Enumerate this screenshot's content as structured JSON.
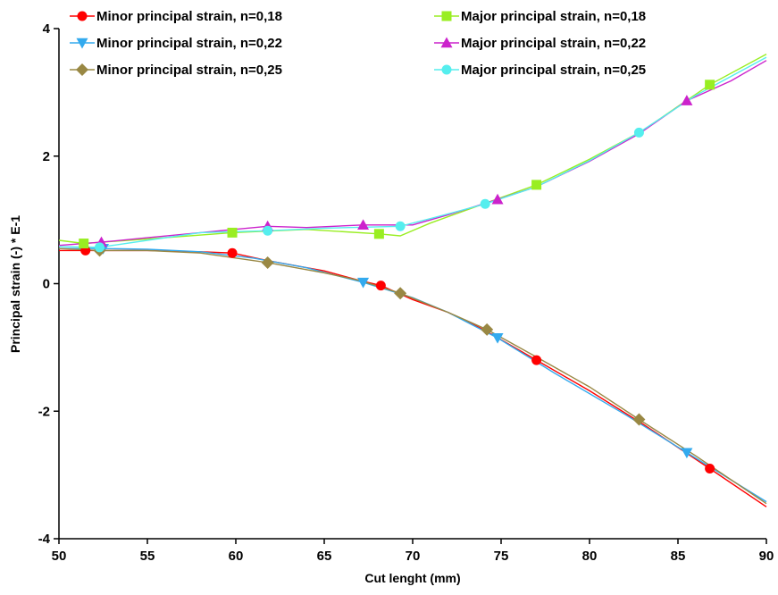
{
  "chart_data": {
    "type": "line",
    "title": "",
    "xlabel": "Cut lenght (mm)",
    "ylabel": "Principal strain (-) * E-1",
    "xlim": [
      50,
      90
    ],
    "ylim": [
      -4,
      4
    ],
    "x_ticks": [
      50,
      55,
      60,
      65,
      70,
      75,
      80,
      85,
      90
    ],
    "y_ticks": [
      -4,
      -2,
      0,
      2,
      4
    ],
    "x_tick_labels": [
      "50",
      "55",
      "60",
      "65",
      "70",
      "75",
      "80",
      "85",
      "90"
    ],
    "y_tick_labels": [
      "-4",
      "-2",
      "0",
      "2",
      "4"
    ],
    "grid": false,
    "legend_position": "top",
    "series": [
      {
        "name": "Minor principal strain, n=0,18",
        "color": "#ff0000",
        "marker": "circle",
        "x": [
          50,
          51.5,
          55,
          58,
          59.8,
          62,
          65,
          67,
          68.2,
          70,
          72,
          74,
          77,
          80,
          83,
          86.8,
          90
        ],
        "y": [
          0.52,
          0.52,
          0.52,
          0.5,
          0.48,
          0.35,
          0.2,
          0.05,
          -0.03,
          -0.25,
          -0.45,
          -0.72,
          -1.2,
          -1.68,
          -2.2,
          -2.9,
          -3.5
        ],
        "marker_x": [
          51.5,
          59.8,
          68.2,
          77,
          86.8
        ],
        "marker_y": [
          0.52,
          0.48,
          -0.03,
          -1.2,
          -2.9
        ]
      },
      {
        "name": "Minor principal strain, n=0,22",
        "color": "#33aaee",
        "marker": "triangle-down",
        "x": [
          50,
          52.5,
          55,
          58,
          61,
          64,
          67.2,
          70,
          72,
          74.8,
          78,
          82,
          85.5,
          90
        ],
        "y": [
          0.55,
          0.55,
          0.54,
          0.5,
          0.4,
          0.25,
          0.02,
          -0.22,
          -0.45,
          -0.85,
          -1.4,
          -2.05,
          -2.65,
          -3.42
        ],
        "marker_x": [
          52.5,
          67.2,
          74.8,
          85.5
        ],
        "marker_y": [
          0.55,
          0.02,
          -0.85,
          -2.65
        ]
      },
      {
        "name": "Minor principal strain, n=0,25",
        "color": "#998844",
        "marker": "diamond",
        "x": [
          50,
          52.3,
          55,
          58,
          61.8,
          65,
          67,
          69.3,
          72,
          74.2,
          77,
          80,
          82.8,
          86,
          90
        ],
        "y": [
          0.55,
          0.52,
          0.52,
          0.48,
          0.33,
          0.17,
          0.05,
          -0.15,
          -0.45,
          -0.72,
          -1.15,
          -1.62,
          -2.13,
          -2.7,
          -3.45
        ],
        "marker_x": [
          52.3,
          61.8,
          69.3,
          74.2,
          82.8
        ],
        "marker_y": [
          0.52,
          0.33,
          -0.15,
          -0.72,
          -2.13
        ]
      },
      {
        "name": "Major principal strain, n=0,18",
        "color": "#99ee22",
        "marker": "square",
        "x": [
          50,
          51.4,
          55,
          59.8,
          64,
          68.1,
          69.3,
          71,
          74,
          77,
          80,
          83,
          86.8,
          90
        ],
        "y": [
          0.68,
          0.63,
          0.7,
          0.8,
          0.85,
          0.78,
          0.75,
          0.95,
          1.25,
          1.55,
          1.95,
          2.4,
          3.12,
          3.6
        ],
        "marker_x": [
          51.4,
          59.8,
          68.1,
          77,
          86.8
        ],
        "marker_y": [
          0.63,
          0.8,
          0.78,
          1.55,
          3.12
        ]
      },
      {
        "name": "Major principal strain, n=0,22",
        "color": "#cc22cc",
        "marker": "triangle-up",
        "x": [
          50,
          52.4,
          55,
          58,
          61.8,
          64,
          67.2,
          70,
          72,
          74.8,
          77,
          80,
          82.8,
          85.5,
          88,
          90
        ],
        "y": [
          0.6,
          0.65,
          0.72,
          0.8,
          0.9,
          0.88,
          0.92,
          0.92,
          1.08,
          1.32,
          1.52,
          1.92,
          2.35,
          2.87,
          3.18,
          3.5
        ],
        "marker_x": [
          52.4,
          61.8,
          67.2,
          74.8,
          85.5
        ],
        "marker_y": [
          0.65,
          0.9,
          0.92,
          1.32,
          2.87
        ]
      },
      {
        "name": "Major principal strain, n=0,25",
        "color": "#55eeee",
        "marker": "circle",
        "x": [
          50,
          52.3,
          55,
          58,
          61.8,
          65,
          69.3,
          71,
          74.1,
          77,
          80,
          82.8,
          86,
          90
        ],
        "y": [
          0.58,
          0.57,
          0.68,
          0.8,
          0.83,
          0.87,
          0.9,
          1.02,
          1.25,
          1.52,
          1.93,
          2.37,
          2.95,
          3.55
        ],
        "marker_x": [
          52.3,
          61.8,
          69.3,
          74.1,
          82.8
        ],
        "marker_y": [
          0.57,
          0.83,
          0.9,
          1.25,
          2.37
        ]
      }
    ]
  }
}
